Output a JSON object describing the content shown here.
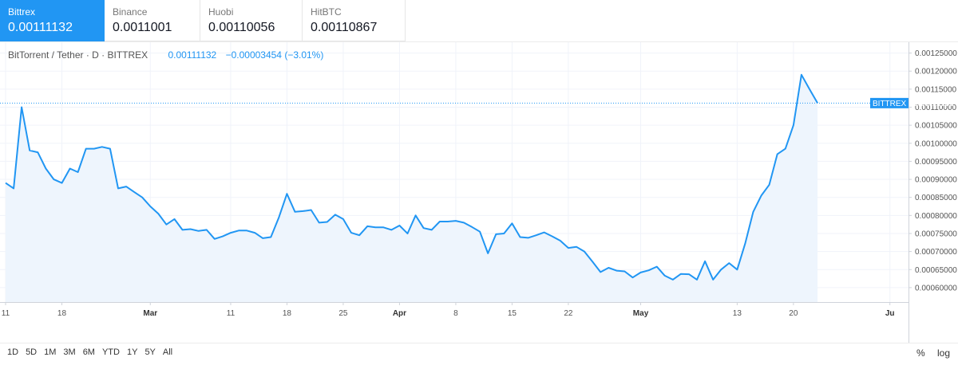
{
  "exchanges": [
    {
      "name": "Bittrex",
      "price": "0.00111132"
    },
    {
      "name": "Binance",
      "price": "0.0011001"
    },
    {
      "name": "Huobi",
      "price": "0.00110056"
    },
    {
      "name": "HitBTC",
      "price": "0.00110867"
    }
  ],
  "legend": {
    "symbol": "BitTorrent / Tether · D · BITTREX",
    "last": "0.00111132",
    "change": "−0.00003454 (−3.01%)"
  },
  "price_tag": "BITTREX · 0.00111132",
  "ranges": [
    "1D",
    "5D",
    "1M",
    "3M",
    "6M",
    "YTD",
    "1Y",
    "5Y",
    "All"
  ],
  "scale_options": {
    "percent": "%",
    "log": "log"
  },
  "colors": {
    "accent": "#2196f3",
    "area": "#eef5fd",
    "grid": "#f0f3fa"
  },
  "chart_data": {
    "type": "area",
    "ylim": [
      0.00056,
      0.00128
    ],
    "yticks": [
      0.0006,
      0.00065,
      0.0007,
      0.00075,
      0.0008,
      0.00085,
      0.0009,
      0.00095,
      0.001,
      0.00105,
      0.0011,
      0.00115,
      0.0012,
      0.00125
    ],
    "ytick_labels": [
      "0.00060000",
      "0.00065000",
      "0.00070000",
      "0.00075000",
      "0.00080000",
      "0.00085000",
      "0.00090000",
      "0.00095000",
      "0.00100000",
      "0.00105000",
      "0.00110000",
      "0.00115000",
      "0.00120000",
      "0.00125000"
    ],
    "xticks": [
      {
        "label": "11",
        "day": 0,
        "bold": false
      },
      {
        "label": "18",
        "day": 7,
        "bold": false
      },
      {
        "label": "Mar",
        "day": 18,
        "bold": true
      },
      {
        "label": "11",
        "day": 28,
        "bold": false
      },
      {
        "label": "18",
        "day": 35,
        "bold": false
      },
      {
        "label": "25",
        "day": 42,
        "bold": false
      },
      {
        "label": "Apr",
        "day": 49,
        "bold": true
      },
      {
        "label": "8",
        "day": 56,
        "bold": false
      },
      {
        "label": "15",
        "day": 63,
        "bold": false
      },
      {
        "label": "22",
        "day": 70,
        "bold": false
      },
      {
        "label": "May",
        "day": 79,
        "bold": true
      },
      {
        "label": "13",
        "day": 91,
        "bold": false
      },
      {
        "label": "20",
        "day": 98,
        "bold": false
      },
      {
        "label": "Ju",
        "day": 110,
        "bold": true
      }
    ],
    "last_price": 0.00111132,
    "values": [
      0.00089,
      0.000875,
      0.0011,
      0.00098,
      0.000975,
      0.00093,
      0.0009,
      0.00089,
      0.00093,
      0.00092,
      0.000985,
      0.000985,
      0.00099,
      0.000985,
      0.000875,
      0.00088,
      0.000865,
      0.00085,
      0.000825,
      0.000805,
      0.000775,
      0.00079,
      0.00076,
      0.000762,
      0.000757,
      0.00076,
      0.000735,
      0.000742,
      0.000752,
      0.000758,
      0.000758,
      0.000752,
      0.000737,
      0.00074,
      0.000795,
      0.00086,
      0.00081,
      0.000812,
      0.000815,
      0.00078,
      0.000782,
      0.000802,
      0.00079,
      0.000752,
      0.000745,
      0.00077,
      0.000767,
      0.000767,
      0.00076,
      0.000772,
      0.00075,
      0.0008,
      0.000765,
      0.00076,
      0.000783,
      0.000783,
      0.000785,
      0.00078,
      0.000768,
      0.000755,
      0.000695,
      0.000748,
      0.00075,
      0.000778,
      0.00074,
      0.000738,
      0.000745,
      0.000753,
      0.000742,
      0.00073,
      0.00071,
      0.000713,
      0.0007,
      0.000672,
      0.000643,
      0.000655,
      0.000647,
      0.000645,
      0.000628,
      0.000642,
      0.000648,
      0.000658,
      0.000633,
      0.000622,
      0.000638,
      0.000637,
      0.000622,
      0.000673,
      0.000622,
      0.00065,
      0.000668,
      0.00065,
      0.000722,
      0.00081,
      0.000855,
      0.000885,
      0.00097,
      0.000985,
      0.00105,
      0.00119,
      0.00115,
      0.00111132
    ]
  }
}
